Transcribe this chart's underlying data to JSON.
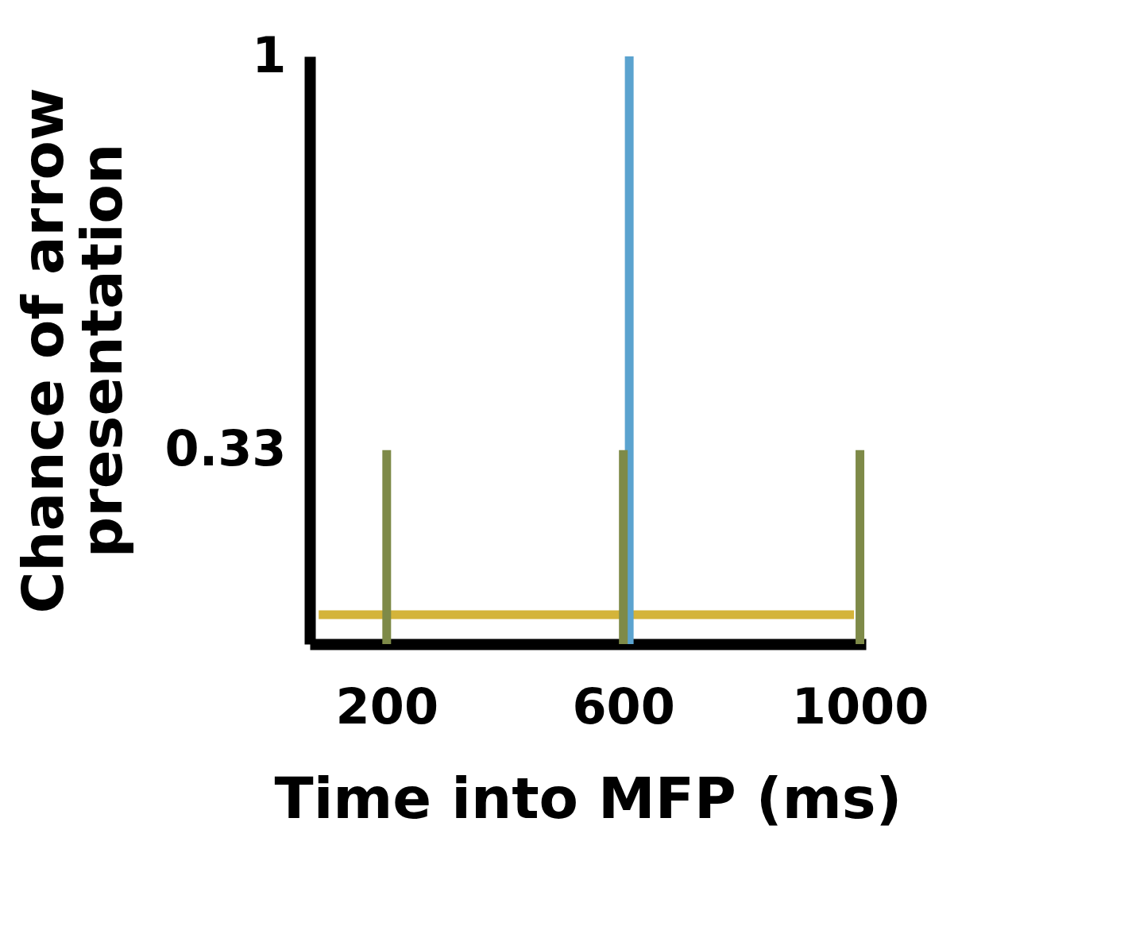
{
  "chart_data": {
    "type": "line",
    "xlabel": "Time into MFP (ms)",
    "ylabel": "Chance of arrow presentation",
    "xlim": [
      70,
      1010
    ],
    "ylim": [
      0,
      1
    ],
    "xticks": [
      200,
      600,
      1000
    ],
    "yticks": [
      0.33,
      1
    ],
    "grid": false,
    "legend": false,
    "marker": "none",
    "line_style": "solid",
    "series": [
      {
        "color": "#d4b43a",
        "x": [
          85,
          990
        ],
        "values": [
          0.05,
          0.05
        ]
      },
      {
        "color": "#5ba3cf",
        "x": [
          610,
          610
        ],
        "values": [
          0,
          1
        ]
      },
      {
        "color": "#7e8a48",
        "x": [
          200,
          200
        ],
        "values": [
          0,
          0.33
        ]
      },
      {
        "color": "#7e8a48",
        "x": [
          600,
          600
        ],
        "values": [
          0,
          0.33
        ]
      },
      {
        "color": "#7e8a48",
        "x": [
          1000,
          1000
        ],
        "values": [
          0,
          0.33
        ]
      }
    ]
  }
}
